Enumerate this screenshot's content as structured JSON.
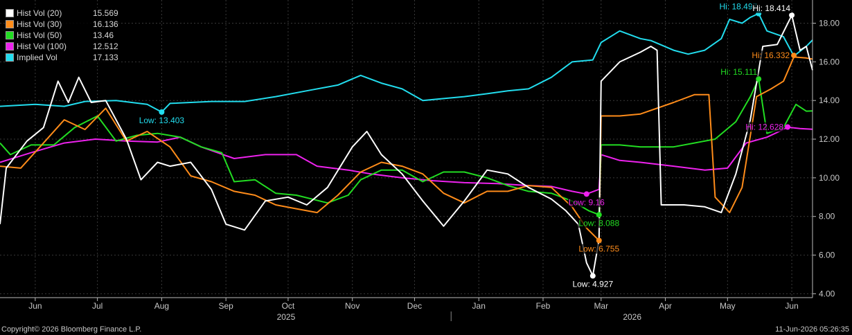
{
  "legend": [
    {
      "name": "Hist Vol (20)",
      "value": "15.569",
      "color": "#ffffff"
    },
    {
      "name": "Hist Vol (30)",
      "value": "16.136",
      "color": "#ff8c1a"
    },
    {
      "name": "Hist Vol (50)",
      "value": "13.46",
      "color": "#22dd22"
    },
    {
      "name": "Hist Vol (100)",
      "value": "12.512",
      "color": "#ee22ee"
    },
    {
      "name": "Implied Vol",
      "value": "17.133",
      "color": "#22ddee"
    }
  ],
  "footer": {
    "copyright": "Copyright© 2026 Bloomberg Finance L.P.",
    "timestamp": "11-Jun-2026 05:26:35"
  },
  "chart_data": {
    "type": "line",
    "x_start": "2025-05-15",
    "x_end": "2026-06-11",
    "ylim": [
      3.8,
      19.2
    ],
    "y_ticks": [
      "4.00",
      "6.00",
      "8.00",
      "10.00",
      "12.00",
      "14.00",
      "16.00",
      "18.00"
    ],
    "x_ticks": [
      {
        "label": "Jun",
        "date": "2025-06-01"
      },
      {
        "label": "Jul",
        "date": "2025-07-01"
      },
      {
        "label": "Aug",
        "date": "2025-08-01"
      },
      {
        "label": "Sep",
        "date": "2025-09-01"
      },
      {
        "label": "Oct",
        "date": "2025-10-01"
      },
      {
        "label": "Nov",
        "date": "2025-11-01"
      },
      {
        "label": "Dec",
        "date": "2025-12-01"
      },
      {
        "label": "Jan",
        "date": "2026-01-01"
      },
      {
        "label": "Feb",
        "date": "2026-02-01"
      },
      {
        "label": "Mar",
        "date": "2026-03-01"
      },
      {
        "label": "Apr",
        "date": "2026-04-01"
      },
      {
        "label": "May",
        "date": "2026-05-01"
      },
      {
        "label": "Jun",
        "date": "2026-06-01"
      }
    ],
    "years": [
      {
        "label": "2025",
        "date": "2025-09-30"
      },
      {
        "label": "2026",
        "date": "2026-03-16"
      }
    ],
    "series": [
      {
        "name": "Implied Vol",
        "color": "#22ddee",
        "points": [
          [
            "2025-05-15",
            13.7
          ],
          [
            "2025-06-01",
            13.8
          ],
          [
            "2025-06-15",
            13.7
          ],
          [
            "2025-06-25",
            13.95
          ],
          [
            "2025-07-10",
            14.0
          ],
          [
            "2025-07-25",
            13.8
          ],
          [
            "2025-08-01",
            13.4
          ],
          [
            "2025-08-05",
            13.85
          ],
          [
            "2025-08-25",
            13.95
          ],
          [
            "2025-09-10",
            13.95
          ],
          [
            "2025-09-25",
            14.2
          ],
          [
            "2025-10-10",
            14.5
          ],
          [
            "2025-10-25",
            14.8
          ],
          [
            "2025-11-05",
            15.3
          ],
          [
            "2025-11-15",
            14.9
          ],
          [
            "2025-11-25",
            14.6
          ],
          [
            "2025-12-05",
            14.0
          ],
          [
            "2025-12-15",
            14.1
          ],
          [
            "2025-12-25",
            14.2
          ],
          [
            "2026-01-05",
            14.35
          ],
          [
            "2026-01-15",
            14.5
          ],
          [
            "2026-01-25",
            14.6
          ],
          [
            "2026-02-05",
            15.2
          ],
          [
            "2026-02-15",
            16.0
          ],
          [
            "2026-02-25",
            16.1
          ],
          [
            "2026-03-01",
            17.0
          ],
          [
            "2026-03-10",
            17.6
          ],
          [
            "2026-03-20",
            17.2
          ],
          [
            "2026-03-25",
            17.1
          ],
          [
            "2026-04-05",
            16.6
          ],
          [
            "2026-04-12",
            16.4
          ],
          [
            "2026-04-20",
            16.6
          ],
          [
            "2026-04-28",
            17.2
          ],
          [
            "2026-05-02",
            18.2
          ],
          [
            "2026-05-08",
            18.0
          ],
          [
            "2026-05-12",
            18.3
          ],
          [
            "2026-05-16",
            18.5
          ],
          [
            "2026-05-20",
            17.6
          ],
          [
            "2026-05-28",
            17.3
          ],
          [
            "2026-06-02",
            16.3
          ],
          [
            "2026-06-08",
            16.8
          ],
          [
            "2026-06-11",
            17.13
          ]
        ]
      },
      {
        "name": "Hist Vol (100)",
        "color": "#ee22ee",
        "points": [
          [
            "2025-05-15",
            10.8
          ],
          [
            "2025-05-30",
            11.3
          ],
          [
            "2025-06-15",
            11.8
          ],
          [
            "2025-06-30",
            12.0
          ],
          [
            "2025-07-15",
            11.9
          ],
          [
            "2025-07-30",
            11.85
          ],
          [
            "2025-08-10",
            12.1
          ],
          [
            "2025-08-20",
            11.6
          ],
          [
            "2025-09-05",
            11.0
          ],
          [
            "2025-09-20",
            11.2
          ],
          [
            "2025-10-05",
            11.2
          ],
          [
            "2025-10-15",
            10.6
          ],
          [
            "2025-10-30",
            10.4
          ],
          [
            "2025-11-10",
            10.2
          ],
          [
            "2025-11-25",
            10.0
          ],
          [
            "2025-12-10",
            9.85
          ],
          [
            "2025-12-25",
            9.75
          ],
          [
            "2026-01-10",
            9.7
          ],
          [
            "2026-01-25",
            9.6
          ],
          [
            "2026-02-05",
            9.55
          ],
          [
            "2026-02-15",
            9.3
          ],
          [
            "2026-02-22",
            9.16
          ],
          [
            "2026-02-28",
            9.4
          ],
          [
            "2026-03-01",
            11.2
          ],
          [
            "2026-03-10",
            10.9
          ],
          [
            "2026-03-20",
            10.8
          ],
          [
            "2026-04-05",
            10.6
          ],
          [
            "2026-04-20",
            10.4
          ],
          [
            "2026-05-01",
            10.5
          ],
          [
            "2026-05-10",
            11.8
          ],
          [
            "2026-05-20",
            12.1
          ],
          [
            "2026-05-26",
            12.4
          ],
          [
            "2026-05-30",
            12.62
          ],
          [
            "2026-06-05",
            12.55
          ],
          [
            "2026-06-11",
            12.51
          ]
        ]
      },
      {
        "name": "Hist Vol (50)",
        "color": "#22dd22",
        "points": [
          [
            "2025-05-15",
            11.8
          ],
          [
            "2025-05-20",
            11.2
          ],
          [
            "2025-05-30",
            11.7
          ],
          [
            "2025-06-10",
            11.7
          ],
          [
            "2025-06-20",
            12.6
          ],
          [
            "2025-07-01",
            13.2
          ],
          [
            "2025-07-10",
            11.9
          ],
          [
            "2025-07-20",
            12.2
          ],
          [
            "2025-07-30",
            12.3
          ],
          [
            "2025-08-10",
            12.1
          ],
          [
            "2025-08-20",
            11.6
          ],
          [
            "2025-08-30",
            11.3
          ],
          [
            "2025-09-05",
            9.8
          ],
          [
            "2025-09-15",
            9.9
          ],
          [
            "2025-09-25",
            9.2
          ],
          [
            "2025-10-05",
            9.1
          ],
          [
            "2025-10-20",
            8.7
          ],
          [
            "2025-10-30",
            9.1
          ],
          [
            "2025-11-05",
            9.9
          ],
          [
            "2025-11-15",
            10.4
          ],
          [
            "2025-11-25",
            10.4
          ],
          [
            "2025-12-05",
            9.8
          ],
          [
            "2025-12-15",
            10.3
          ],
          [
            "2025-12-25",
            10.3
          ],
          [
            "2026-01-05",
            10.0
          ],
          [
            "2026-01-15",
            9.6
          ],
          [
            "2026-01-25",
            9.3
          ],
          [
            "2026-02-05",
            9.2
          ],
          [
            "2026-02-15",
            8.8
          ],
          [
            "2026-02-23",
            8.3
          ],
          [
            "2026-02-28",
            8.09
          ],
          [
            "2026-03-01",
            11.7
          ],
          [
            "2026-03-10",
            11.7
          ],
          [
            "2026-03-20",
            11.6
          ],
          [
            "2026-04-05",
            11.6
          ],
          [
            "2026-04-15",
            11.8
          ],
          [
            "2026-04-25",
            12.0
          ],
          [
            "2026-05-05",
            12.9
          ],
          [
            "2026-05-12",
            14.2
          ],
          [
            "2026-05-16",
            15.11
          ],
          [
            "2026-05-20",
            12.3
          ],
          [
            "2026-05-28",
            12.6
          ],
          [
            "2026-06-03",
            13.8
          ],
          [
            "2026-06-08",
            13.45
          ],
          [
            "2026-06-11",
            13.46
          ]
        ]
      },
      {
        "name": "Hist Vol (30)",
        "color": "#ff8c1a",
        "points": [
          [
            "2025-05-15",
            10.6
          ],
          [
            "2025-05-25",
            10.5
          ],
          [
            "2025-06-05",
            11.8
          ],
          [
            "2025-06-15",
            13.0
          ],
          [
            "2025-06-25",
            12.5
          ],
          [
            "2025-07-05",
            13.6
          ],
          [
            "2025-07-15",
            11.9
          ],
          [
            "2025-07-25",
            12.4
          ],
          [
            "2025-08-05",
            11.6
          ],
          [
            "2025-08-15",
            10.1
          ],
          [
            "2025-08-25",
            9.8
          ],
          [
            "2025-09-05",
            9.3
          ],
          [
            "2025-09-15",
            9.1
          ],
          [
            "2025-09-25",
            8.6
          ],
          [
            "2025-10-05",
            8.4
          ],
          [
            "2025-10-15",
            8.2
          ],
          [
            "2025-10-25",
            9.1
          ],
          [
            "2025-11-05",
            10.3
          ],
          [
            "2025-11-15",
            10.8
          ],
          [
            "2025-11-25",
            10.6
          ],
          [
            "2025-12-05",
            10.2
          ],
          [
            "2025-12-15",
            9.2
          ],
          [
            "2025-12-25",
            8.7
          ],
          [
            "2026-01-05",
            9.3
          ],
          [
            "2026-01-15",
            9.3
          ],
          [
            "2026-01-25",
            9.6
          ],
          [
            "2026-02-05",
            9.5
          ],
          [
            "2026-02-15",
            8.5
          ],
          [
            "2026-02-22",
            7.4
          ],
          [
            "2026-02-28",
            6.76
          ],
          [
            "2026-03-01",
            13.2
          ],
          [
            "2026-03-10",
            13.2
          ],
          [
            "2026-03-20",
            13.3
          ],
          [
            "2026-04-05",
            13.9
          ],
          [
            "2026-04-15",
            14.3
          ],
          [
            "2026-04-22",
            14.3
          ],
          [
            "2026-04-25",
            9.0
          ],
          [
            "2026-05-02",
            8.2
          ],
          [
            "2026-05-08",
            9.5
          ],
          [
            "2026-05-15",
            14.2
          ],
          [
            "2026-05-22",
            14.6
          ],
          [
            "2026-05-28",
            15.0
          ],
          [
            "2026-06-02",
            16.25
          ],
          [
            "2026-06-08",
            16.2
          ],
          [
            "2026-06-11",
            16.14
          ]
        ]
      },
      {
        "name": "Hist Vol (20)",
        "color": "#ffffff",
        "points": [
          [
            "2025-05-15",
            7.6
          ],
          [
            "2025-05-18",
            10.5
          ],
          [
            "2025-05-28",
            11.9
          ],
          [
            "2025-06-05",
            12.6
          ],
          [
            "2025-06-12",
            15.0
          ],
          [
            "2025-06-17",
            13.9
          ],
          [
            "2025-06-22",
            15.2
          ],
          [
            "2025-06-28",
            13.9
          ],
          [
            "2025-07-05",
            14.0
          ],
          [
            "2025-07-15",
            12.0
          ],
          [
            "2025-07-22",
            9.9
          ],
          [
            "2025-07-30",
            10.8
          ],
          [
            "2025-08-05",
            10.6
          ],
          [
            "2025-08-15",
            10.8
          ],
          [
            "2025-08-25",
            9.4
          ],
          [
            "2025-09-01",
            7.6
          ],
          [
            "2025-09-10",
            7.3
          ],
          [
            "2025-09-20",
            8.8
          ],
          [
            "2025-10-01",
            9.0
          ],
          [
            "2025-10-10",
            8.6
          ],
          [
            "2025-10-20",
            9.5
          ],
          [
            "2025-11-01",
            11.6
          ],
          [
            "2025-11-08",
            12.4
          ],
          [
            "2025-11-15",
            11.2
          ],
          [
            "2025-11-25",
            10.2
          ],
          [
            "2025-12-05",
            8.8
          ],
          [
            "2025-12-15",
            7.5
          ],
          [
            "2025-12-25",
            8.8
          ],
          [
            "2026-01-05",
            10.4
          ],
          [
            "2026-01-15",
            10.2
          ],
          [
            "2026-01-25",
            9.5
          ],
          [
            "2026-02-05",
            8.9
          ],
          [
            "2026-02-12",
            8.3
          ],
          [
            "2026-02-18",
            7.6
          ],
          [
            "2026-02-22",
            5.6
          ],
          [
            "2026-02-25",
            4.93
          ],
          [
            "2026-02-28",
            6.8
          ],
          [
            "2026-03-01",
            15.0
          ],
          [
            "2026-03-10",
            16.0
          ],
          [
            "2026-03-20",
            16.5
          ],
          [
            "2026-03-25",
            16.8
          ],
          [
            "2026-03-28",
            16.6
          ],
          [
            "2026-03-30",
            8.6
          ],
          [
            "2026-04-10",
            8.6
          ],
          [
            "2026-04-20",
            8.5
          ],
          [
            "2026-04-28",
            8.2
          ],
          [
            "2026-05-05",
            10.2
          ],
          [
            "2026-05-12",
            13.0
          ],
          [
            "2026-05-18",
            16.8
          ],
          [
            "2026-05-25",
            16.9
          ],
          [
            "2026-06-01",
            18.41
          ],
          [
            "2026-06-05",
            16.6
          ],
          [
            "2026-06-08",
            16.8
          ],
          [
            "2026-06-11",
            15.57
          ]
        ]
      }
    ],
    "annotations": [
      {
        "text": "Low: 13.403",
        "date": "2025-08-01",
        "value": 13.403,
        "color": "#22ddee",
        "anchor": "below"
      },
      {
        "text": "Hi: 18.497",
        "date": "2026-05-16",
        "value": 18.497,
        "color": "#22ddee",
        "anchor": "left-above"
      },
      {
        "text": "Hi: 18.414",
        "date": "2026-06-01",
        "value": 18.414,
        "color": "#ffffff",
        "anchor": "left-above"
      },
      {
        "text": "Hi: 16.332",
        "date": "2026-06-02",
        "value": 16.332,
        "color": "#ff8c1a",
        "anchor": "left"
      },
      {
        "text": "Hi: 15.111",
        "date": "2026-05-16",
        "value": 15.111,
        "color": "#22dd22",
        "anchor": "left-above"
      },
      {
        "text": "Hi: 12.628",
        "date": "2026-05-30",
        "value": 12.628,
        "color": "#ee22ee",
        "anchor": "left"
      },
      {
        "text": "Low: 9.16",
        "date": "2026-02-22",
        "value": 9.16,
        "color": "#ee22ee",
        "anchor": "below"
      },
      {
        "text": "Low: 8.088",
        "date": "2026-02-28",
        "value": 8.088,
        "color": "#22dd22",
        "anchor": "below"
      },
      {
        "text": "Low: 6.755",
        "date": "2026-02-28",
        "value": 6.755,
        "color": "#ff8c1a",
        "anchor": "below"
      },
      {
        "text": "Low: 4.927",
        "date": "2026-02-25",
        "value": 4.927,
        "color": "#ffffff",
        "anchor": "below"
      }
    ]
  }
}
